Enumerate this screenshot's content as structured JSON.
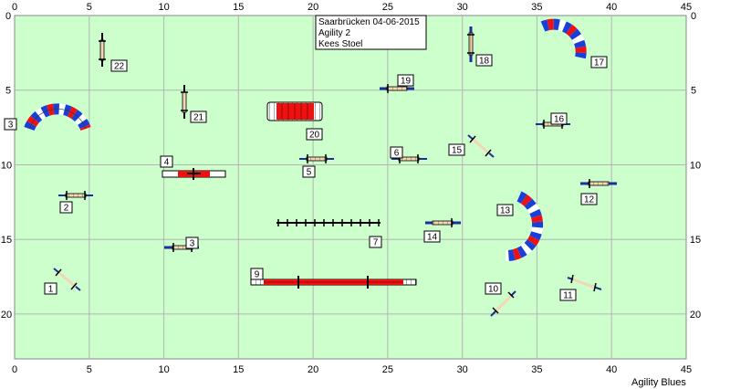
{
  "info_box": {
    "line1": "Saarbrücken 04-06-2015",
    "line2": "Agility 2",
    "line3": "Kees Stoel"
  },
  "footer": "Agility Blues",
  "axes": {
    "x_ticks": [
      "0",
      "5",
      "10",
      "15",
      "20",
      "25",
      "30",
      "35",
      "40",
      "45"
    ],
    "y_ticks": [
      "0",
      "5",
      "10",
      "15",
      "20"
    ],
    "x_range": [
      0,
      45
    ],
    "y_range": [
      0,
      23
    ]
  },
  "colors": {
    "field": "#ccffcc",
    "grid": "#b4b4b4",
    "tunnel_red": "#ee1111",
    "tyre_blue": "#1a3fd8",
    "pole_blue": "#1a2f9a",
    "pole_light": "#f2d6b8"
  },
  "numbers": [
    {
      "id": "1",
      "text": "1"
    },
    {
      "id": "2",
      "text": "2"
    },
    {
      "id": "3",
      "text": "3"
    },
    {
      "id": "3b",
      "text": "3"
    },
    {
      "id": "4",
      "text": "4"
    },
    {
      "id": "5",
      "text": "5"
    },
    {
      "id": "6",
      "text": "6"
    },
    {
      "id": "7",
      "text": "7"
    },
    {
      "id": "9",
      "text": "9"
    },
    {
      "id": "10",
      "text": "10"
    },
    {
      "id": "11",
      "text": "11"
    },
    {
      "id": "12",
      "text": "12"
    },
    {
      "id": "13",
      "text": "13"
    },
    {
      "id": "14",
      "text": "14"
    },
    {
      "id": "15",
      "text": "15"
    },
    {
      "id": "16",
      "text": "16"
    },
    {
      "id": "17",
      "text": "17"
    },
    {
      "id": "18",
      "text": "18"
    },
    {
      "id": "19",
      "text": "19"
    },
    {
      "id": "20",
      "text": "20"
    },
    {
      "id": "21",
      "text": "21"
    },
    {
      "id": "22",
      "text": "22"
    }
  ]
}
